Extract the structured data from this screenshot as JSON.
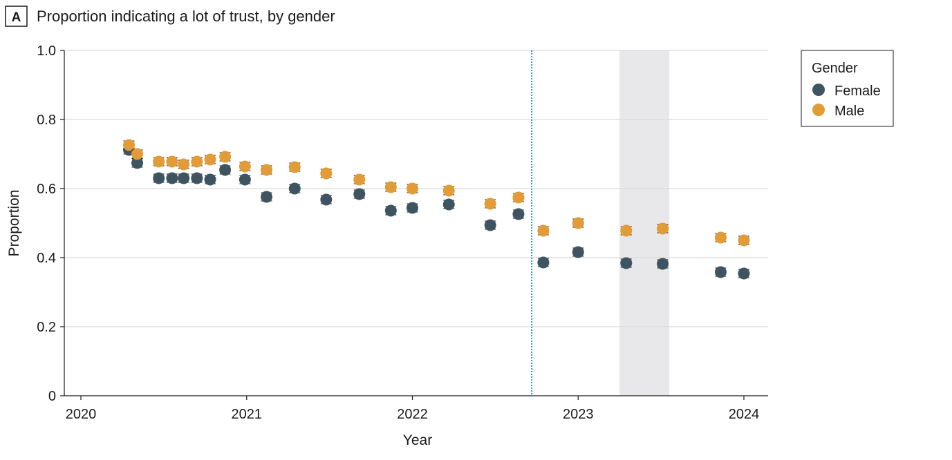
{
  "panel_label": "A",
  "chart_data": {
    "type": "scatter",
    "title": "Proportion indicating a lot of trust, by gender",
    "xlabel": "Year",
    "ylabel": "Proportion",
    "xlim": [
      2019.9,
      2024.15
    ],
    "ylim": [
      0,
      1.0
    ],
    "x_ticks": [
      2020,
      2021,
      2022,
      2023,
      2024
    ],
    "x_tick_labels": [
      "2020",
      "2021",
      "2022",
      "2023",
      "2024"
    ],
    "y_ticks": [
      0,
      0.2,
      0.4,
      0.6,
      0.8,
      1.0
    ],
    "y_tick_labels": [
      "0",
      "0.2",
      "0.4",
      "0.6",
      "0.8",
      "1.0"
    ],
    "grid": "horizontal",
    "vertical_line": 2022.72,
    "shaded_region": [
      2023.25,
      2023.55
    ],
    "legend": {
      "title": "Gender",
      "placement": "top-right outside"
    },
    "error_margin": 0.012,
    "x": [
      2020.29,
      2020.34,
      2020.47,
      2020.55,
      2020.62,
      2020.7,
      2020.78,
      2020.87,
      2020.99,
      2021.12,
      2021.29,
      2021.48,
      2021.68,
      2021.87,
      2022.0,
      2022.22,
      2022.47,
      2022.64,
      2022.79,
      2023.0,
      2023.29,
      2023.51,
      2023.86,
      2024.0
    ],
    "series": [
      {
        "name": "Female",
        "color": "#3e5461",
        "values": [
          0.712,
          0.674,
          0.63,
          0.63,
          0.63,
          0.63,
          0.626,
          0.654,
          0.626,
          0.576,
          0.6,
          0.568,
          0.584,
          0.536,
          0.544,
          0.554,
          0.494,
          0.526,
          0.386,
          0.416,
          0.384,
          0.382,
          0.358,
          0.354
        ]
      },
      {
        "name": "Male",
        "color": "#e19b37",
        "values": [
          0.726,
          0.7,
          0.678,
          0.678,
          0.67,
          0.678,
          0.684,
          0.692,
          0.664,
          0.654,
          0.662,
          0.644,
          0.626,
          0.604,
          0.6,
          0.594,
          0.556,
          0.574,
          0.478,
          0.5,
          0.478,
          0.484,
          0.458,
          0.45
        ]
      }
    ]
  }
}
